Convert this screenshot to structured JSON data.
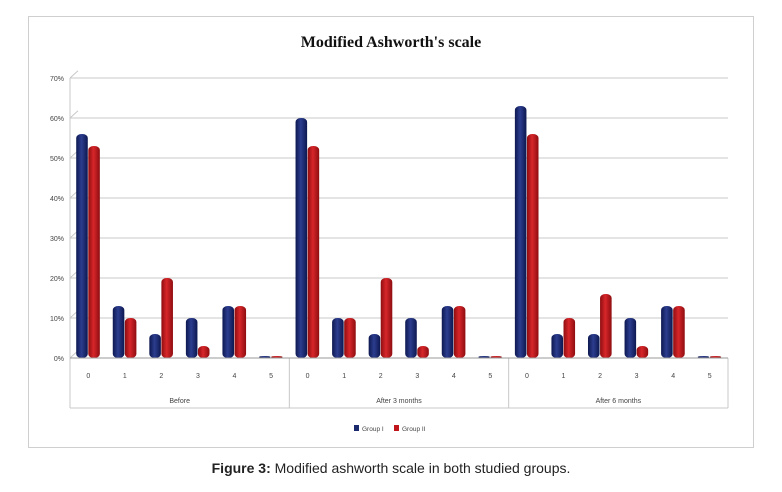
{
  "caption": {
    "label": "Figure 3:",
    "text": "Modified ashworth scale in both studied groups."
  },
  "chart_data": {
    "type": "bar",
    "title": "Modified Ashworth's scale",
    "xlabel": "",
    "ylabel": "",
    "ylim": [
      0,
      70
    ],
    "yticks": [
      "0%",
      "10%",
      "20%",
      "30%",
      "40%",
      "50%",
      "60%",
      "70%"
    ],
    "grid": true,
    "legend_position": "bottom",
    "groups": [
      "Before",
      "After 3 months",
      "After 6 months"
    ],
    "categories": [
      "0",
      "1",
      "2",
      "3",
      "4",
      "5"
    ],
    "series": [
      {
        "name": "Group I",
        "color": "#1a2a6c",
        "values": [
          [
            56,
            13,
            6,
            10,
            13,
            0
          ],
          [
            60,
            10,
            6,
            10,
            13,
            0
          ],
          [
            63,
            6,
            6,
            10,
            13,
            0
          ]
        ]
      },
      {
        "name": "Group II",
        "color": "#c0161b",
        "values": [
          [
            53,
            10,
            20,
            3,
            13,
            0
          ],
          [
            53,
            10,
            20,
            3,
            13,
            0
          ],
          [
            56,
            10,
            16,
            3,
            13,
            0
          ]
        ]
      }
    ]
  }
}
